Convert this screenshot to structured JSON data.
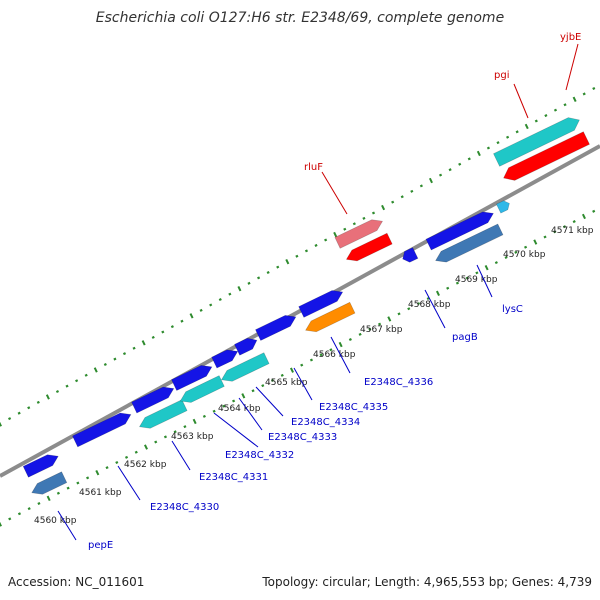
{
  "title": "Escherichia coli O127:H6 str. E2348/69, complete genome",
  "footer": {
    "accession": "Accession: NC_011601",
    "summary": "Topology: circular; Length: 4,965,553 bp; Genes: 4,739"
  },
  "colors": {
    "backbone": "#8c8c8c",
    "dots": "#2e8b2e",
    "blue_gene": "#1414e6",
    "steel_gene": "#3f78b4",
    "cyan_gene": "#1fc7c7",
    "orange_gene": "#ff8c00",
    "red_gene": "#ff0000",
    "pink_gene": "#e8707a",
    "light_cyan_gene": "#2fb8e8",
    "label_blue": "#0000c8",
    "label_red": "#cc0000"
  },
  "axis": {
    "unit": "kbp",
    "ticks": [
      "4560 kbp",
      "4561 kbp",
      "4562 kbp",
      "4563 kbp",
      "4564 kbp",
      "4565 kbp",
      "4566 kbp",
      "4567 kbp",
      "4568 kbp",
      "4569 kbp",
      "4570 kbp",
      "4571 kbp"
    ]
  },
  "genes": [
    {
      "label": "pepE",
      "color": "blue_gene",
      "strand": "plus"
    },
    {
      "label": "",
      "color": "steel_gene",
      "strand": "minus"
    },
    {
      "label": "",
      "color": "blue_gene",
      "strand": "plus"
    },
    {
      "label": "E2348C_4330",
      "color": "blue_gene",
      "strand": "plus"
    },
    {
      "label": "E2348C_4331",
      "color": "cyan_gene",
      "strand": "minus"
    },
    {
      "label": "",
      "color": "blue_gene",
      "strand": "plus"
    },
    {
      "label": "E2348C_4332",
      "color": "cyan_gene",
      "strand": "minus"
    },
    {
      "label": "E2348C_4333",
      "color": "blue_gene",
      "strand": "plus"
    },
    {
      "label": "E2348C_4334",
      "color": "cyan_gene",
      "strand": "minus"
    },
    {
      "label": "E2348C_4335",
      "color": "blue_gene",
      "strand": "plus"
    },
    {
      "label": "",
      "color": "blue_gene",
      "strand": "plus"
    },
    {
      "label": "E2348C_4336",
      "color": "orange_gene",
      "strand": "minus"
    },
    {
      "label": "rluF",
      "color": "pink_gene",
      "strand": "plus"
    },
    {
      "label": "",
      "color": "red_gene",
      "strand": "minus"
    },
    {
      "label": "pagB",
      "color": "blue_gene",
      "strand": "minus"
    },
    {
      "label": "",
      "color": "blue_gene",
      "strand": "plus"
    },
    {
      "label": "lysC",
      "color": "steel_gene",
      "strand": "minus"
    },
    {
      "label": "",
      "color": "light_cyan_gene",
      "strand": "plus"
    },
    {
      "label": "pgi",
      "color": "cyan_gene",
      "strand": "plus"
    },
    {
      "label": "yjbE",
      "color": "red_gene",
      "strand": "minus"
    }
  ]
}
